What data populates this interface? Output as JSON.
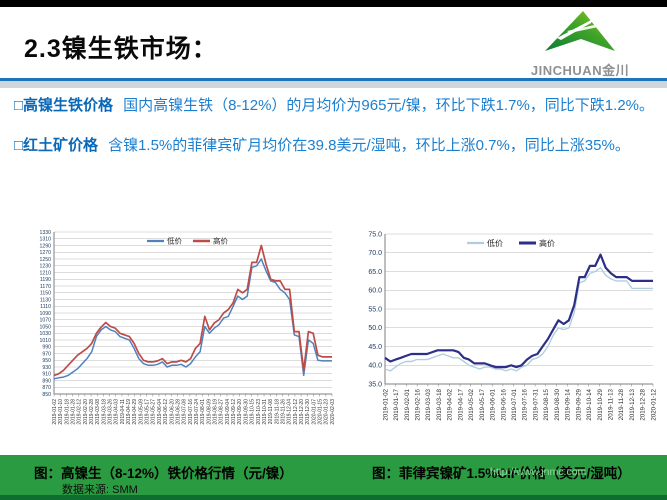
{
  "header": {
    "title": "2.3镍生铁市场：",
    "logo_text": "JINCHUAN金川",
    "logo_green_dark": "#0f7c35",
    "logo_green_light": "#9ccc1c"
  },
  "bullets": [
    {
      "label": "□高镍生铁价格",
      "text": "国内高镍生铁（8-12%）的月均价为965元/镍，环比下跌1.7%，同比下跌1.2%。"
    },
    {
      "label": "□红土矿价格",
      "text": "含镍1.5%的菲律宾矿月均价在39.8美元/湿吨，环比上涨0.7%，同比上涨35%。"
    }
  ],
  "footer": {
    "caption_left": "图：高镍生（8-12%）铁价格行情（元/镍）",
    "caption_right": "图：菲律宾镍矿1.5%CIF价格（美元/湿吨）",
    "source": "数据来源: SMM",
    "watermark": "http://www.jnmc.com",
    "bar_color": "#2a9b41"
  },
  "chart_data": [
    {
      "type": "line",
      "title": "高镍生（8-12%）铁价格行情（元/镍）",
      "legend_position": "top",
      "grid": true,
      "ylim": [
        850,
        1330
      ],
      "yticks": [
        "1330",
        "1310",
        "1290",
        "1270",
        "1250",
        "1230",
        "1210",
        "1190",
        "1170",
        "1150",
        "1130",
        "1110",
        "1090",
        "1070",
        "1050",
        "1030",
        "1010",
        "990",
        "970",
        "950",
        "930",
        "910",
        "890",
        "870",
        "850"
      ],
      "xticklabels": [
        "2019-01-02",
        "2019-01-10",
        "2019-01-18",
        "2019-01-28",
        "2019-02-12",
        "2019-02-20",
        "2019-02-28",
        "2019-03-08",
        "2019-03-18",
        "2019-03-26",
        "2019-04-03",
        "2019-04-11",
        "2019-04-19",
        "2019-04-29",
        "2019-05-09",
        "2019-05-17",
        "2019-05-27",
        "2019-06-04",
        "2019-06-12",
        "2019-06-20",
        "2019-06-28",
        "2019-07-08",
        "2019-07-16",
        "2019-07-24",
        "2019-08-01",
        "2019-08-09",
        "2019-08-19",
        "2019-08-27",
        "2019-09-04",
        "2019-09-12",
        "2019-09-20",
        "2019-09-30",
        "2019-10-15",
        "2019-10-23",
        "2019-10-31",
        "2019-11-08",
        "2019-11-18",
        "2019-11-26",
        "2019-12-04",
        "2019-12-12",
        "2019-12-20",
        "2019-12-30",
        "2020-01-07",
        "2020-01-15",
        "2020-01-23",
        "2020-02-03"
      ],
      "series": [
        {
          "name": "低价",
          "color": "#4F81BD",
          "width": 1.5,
          "values": [
            895,
            898,
            900,
            905,
            915,
            925,
            940,
            955,
            975,
            1020,
            1040,
            1050,
            1040,
            1035,
            1020,
            1015,
            1010,
            985,
            955,
            940,
            935,
            935,
            938,
            945,
            930,
            935,
            935,
            938,
            930,
            940,
            960,
            975,
            1050,
            1030,
            1045,
            1055,
            1075,
            1080,
            1110,
            1140,
            1130,
            1140,
            1225,
            1230,
            1250,
            1215,
            1185,
            1180,
            1160,
            1150,
            1130,
            1025,
            1020,
            905,
            1010,
            1000,
            950,
            948,
            948,
            948
          ]
        },
        {
          "name": "高价",
          "color": "#BE4B48",
          "width": 1.7,
          "values": [
            905,
            910,
            920,
            935,
            950,
            965,
            975,
            985,
            1000,
            1030,
            1048,
            1062,
            1050,
            1045,
            1030,
            1025,
            1020,
            1000,
            970,
            950,
            945,
            945,
            948,
            955,
            940,
            945,
            945,
            950,
            945,
            955,
            985,
            1000,
            1080,
            1040,
            1060,
            1070,
            1090,
            1100,
            1120,
            1160,
            1150,
            1160,
            1240,
            1240,
            1290,
            1235,
            1190,
            1185,
            1185,
            1160,
            1160,
            1035,
            1035,
            920,
            1035,
            1030,
            965,
            960,
            960,
            960
          ]
        }
      ]
    },
    {
      "type": "line",
      "title": "菲律宾镍矿1.5%CIF价格（美元/湿吨）",
      "legend_position": "top",
      "grid": true,
      "ylim": [
        35,
        75
      ],
      "yticks": [
        "75.0",
        "70.0",
        "65.0",
        "60.0",
        "55.0",
        "50.0",
        "45.0",
        "40.0",
        "35.0"
      ],
      "xticklabels": [
        "2019-01-02",
        "2019-01-17",
        "2019-02-01",
        "2019-02-16",
        "2019-03-03",
        "2019-03-18",
        "2019-04-02",
        "2019-04-17",
        "2019-05-02",
        "2019-05-17",
        "2019-06-01",
        "2019-06-16",
        "2019-07-01",
        "2019-07-16",
        "2019-07-31",
        "2019-08-15",
        "2019-08-30",
        "2019-09-14",
        "2019-09-29",
        "2019-10-14",
        "2019-10-29",
        "2019-11-13",
        "2019-11-28",
        "2019-12-13",
        "2019-12-28",
        "2020-01-12"
      ],
      "series": [
        {
          "name": "低价",
          "color": "#AFCFDE",
          "width": 1.4,
          "values": [
            39.0,
            38.5,
            39.5,
            40.5,
            41.0,
            41.0,
            41.5,
            41.5,
            41.5,
            42.0,
            42.5,
            43.0,
            42.5,
            42.0,
            42.0,
            41.0,
            40.0,
            39.5,
            39.0,
            39.5,
            39.5,
            39.0,
            39.0,
            38.5,
            39.0,
            38.5,
            39.5,
            40.0,
            41.5,
            42.0,
            43.0,
            45.0,
            48.0,
            50.0,
            49.5,
            50.0,
            54.0,
            62.0,
            62.5,
            64.5,
            65.0,
            66.0,
            64.0,
            63.0,
            62.5,
            62.5,
            62.5,
            60.5,
            60.5,
            60.5,
            60.5,
            60.5
          ]
        },
        {
          "name": "高价",
          "color": "#2D2E87",
          "width": 2.2,
          "values": [
            42.0,
            41.0,
            41.5,
            42.0,
            42.5,
            43.0,
            43.0,
            43.0,
            43.0,
            43.5,
            44.0,
            44.0,
            44.0,
            44.0,
            43.5,
            42.0,
            41.5,
            40.5,
            40.5,
            40.5,
            40.0,
            39.5,
            39.5,
            39.5,
            40.0,
            39.5,
            40.0,
            41.5,
            42.5,
            43.0,
            45.0,
            47.0,
            49.5,
            52.0,
            51.0,
            52.0,
            56.0,
            63.5,
            63.5,
            66.5,
            66.5,
            69.5,
            66.0,
            64.5,
            63.5,
            63.5,
            63.5,
            62.5,
            62.5,
            62.5,
            62.5,
            62.5
          ]
        }
      ]
    }
  ]
}
